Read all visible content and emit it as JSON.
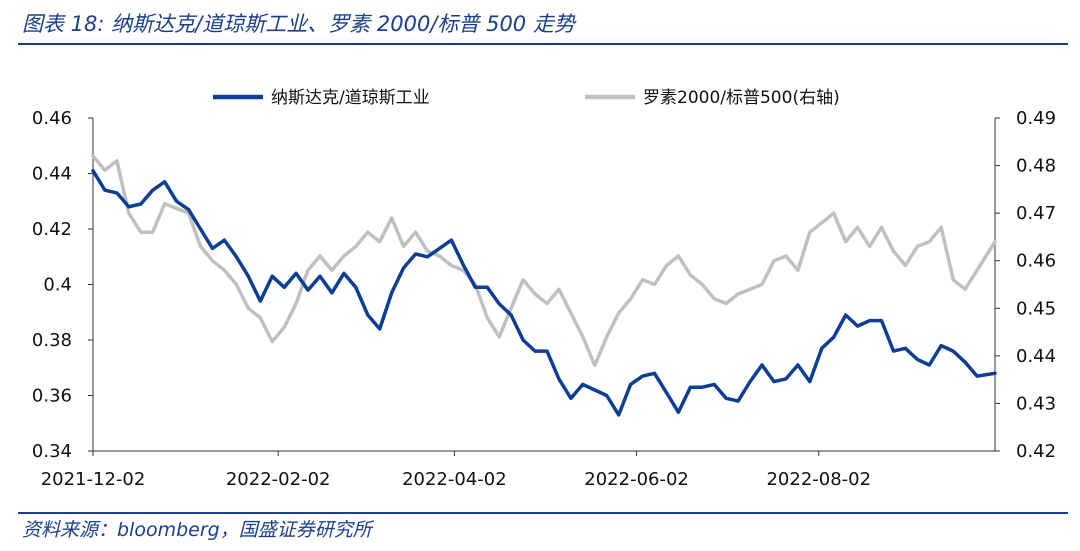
{
  "figure": {
    "title": "图表 18: 纳斯达克/道琼斯工业、罗素 2000/标普 500 走势",
    "source": "资料来源：bloomberg，国盛证券研究所"
  },
  "chart_data": {
    "type": "line",
    "title": "",
    "xlabel": "",
    "ylabel": "",
    "x_ticks": [
      "2021-12-02",
      "2022-02-02",
      "2022-04-02",
      "2022-06-02",
      "2022-08-02"
    ],
    "xlim": [
      "2021-12-02",
      "2022-09-30"
    ],
    "y_left": {
      "lim": [
        0.34,
        0.46
      ],
      "ticks": [
        "0.34",
        "0.36",
        "0.38",
        "0.4",
        "0.42",
        "0.44",
        "0.46"
      ]
    },
    "y_right": {
      "lim": [
        0.42,
        0.49
      ],
      "ticks": [
        "0.42",
        "0.43",
        "0.44",
        "0.45",
        "0.46",
        "0.47",
        "0.48",
        "0.49"
      ]
    },
    "legend_position": "top",
    "grid": false,
    "series": [
      {
        "name": "纳斯达克/道琼斯工业",
        "axis": "left",
        "color": "#0c3f94",
        "x": [
          "2021-12-02",
          "2021-12-06",
          "2021-12-10",
          "2021-12-14",
          "2021-12-18",
          "2021-12-22",
          "2021-12-26",
          "2021-12-30",
          "2022-01-03",
          "2022-01-07",
          "2022-01-11",
          "2022-01-15",
          "2022-01-19",
          "2022-01-23",
          "2022-01-27",
          "2022-01-31",
          "2022-02-04",
          "2022-02-08",
          "2022-02-12",
          "2022-02-16",
          "2022-02-20",
          "2022-02-24",
          "2022-02-28",
          "2022-03-04",
          "2022-03-08",
          "2022-03-12",
          "2022-03-16",
          "2022-03-20",
          "2022-03-24",
          "2022-03-28",
          "2022-04-01",
          "2022-04-05",
          "2022-04-09",
          "2022-04-13",
          "2022-04-17",
          "2022-04-21",
          "2022-04-25",
          "2022-04-29",
          "2022-05-03",
          "2022-05-07",
          "2022-05-11",
          "2022-05-15",
          "2022-05-19",
          "2022-05-23",
          "2022-05-27",
          "2022-05-31",
          "2022-06-04",
          "2022-06-08",
          "2022-06-12",
          "2022-06-16",
          "2022-06-20",
          "2022-06-24",
          "2022-06-28",
          "2022-07-02",
          "2022-07-06",
          "2022-07-10",
          "2022-07-14",
          "2022-07-18",
          "2022-07-22",
          "2022-07-26",
          "2022-07-30",
          "2022-08-03",
          "2022-08-07",
          "2022-08-11",
          "2022-08-15",
          "2022-08-19",
          "2022-08-23",
          "2022-08-27",
          "2022-08-31",
          "2022-09-04",
          "2022-09-08",
          "2022-09-12",
          "2022-09-16",
          "2022-09-20",
          "2022-09-24",
          "2022-09-30"
        ],
        "values": [
          0.441,
          0.434,
          0.433,
          0.428,
          0.429,
          0.434,
          0.437,
          0.43,
          0.427,
          0.42,
          0.413,
          0.416,
          0.41,
          0.403,
          0.394,
          0.403,
          0.399,
          0.404,
          0.398,
          0.403,
          0.397,
          0.404,
          0.399,
          0.389,
          0.384,
          0.397,
          0.406,
          0.411,
          0.41,
          0.413,
          0.416,
          0.407,
          0.399,
          0.399,
          0.393,
          0.389,
          0.38,
          0.376,
          0.376,
          0.366,
          0.359,
          0.364,
          0.362,
          0.36,
          0.353,
          0.364,
          0.367,
          0.368,
          0.361,
          0.354,
          0.363,
          0.363,
          0.364,
          0.359,
          0.358,
          0.365,
          0.371,
          0.365,
          0.366,
          0.371,
          0.365,
          0.377,
          0.381,
          0.389,
          0.385,
          0.387,
          0.387,
          0.376,
          0.377,
          0.373,
          0.371,
          0.378,
          0.376,
          0.372,
          0.367,
          0.368
        ]
      },
      {
        "name": "罗素2000/标普500(右轴)",
        "axis": "right",
        "color": "#c0c0c0",
        "x": [
          "2021-12-02",
          "2021-12-06",
          "2021-12-10",
          "2021-12-14",
          "2021-12-18",
          "2021-12-22",
          "2021-12-26",
          "2021-12-30",
          "2022-01-03",
          "2022-01-07",
          "2022-01-11",
          "2022-01-15",
          "2022-01-19",
          "2022-01-23",
          "2022-01-27",
          "2022-01-31",
          "2022-02-04",
          "2022-02-08",
          "2022-02-12",
          "2022-02-16",
          "2022-02-20",
          "2022-02-24",
          "2022-02-28",
          "2022-03-04",
          "2022-03-08",
          "2022-03-12",
          "2022-03-16",
          "2022-03-20",
          "2022-03-24",
          "2022-03-28",
          "2022-04-01",
          "2022-04-05",
          "2022-04-09",
          "2022-04-13",
          "2022-04-17",
          "2022-04-21",
          "2022-04-25",
          "2022-04-29",
          "2022-05-03",
          "2022-05-07",
          "2022-05-11",
          "2022-05-15",
          "2022-05-19",
          "2022-05-23",
          "2022-05-27",
          "2022-05-31",
          "2022-06-04",
          "2022-06-08",
          "2022-06-12",
          "2022-06-16",
          "2022-06-20",
          "2022-06-24",
          "2022-06-28",
          "2022-07-02",
          "2022-07-06",
          "2022-07-10",
          "2022-07-14",
          "2022-07-18",
          "2022-07-22",
          "2022-07-26",
          "2022-07-30",
          "2022-08-03",
          "2022-08-07",
          "2022-08-11",
          "2022-08-15",
          "2022-08-19",
          "2022-08-23",
          "2022-08-27",
          "2022-08-31",
          "2022-09-04",
          "2022-09-08",
          "2022-09-12",
          "2022-09-16",
          "2022-09-20",
          "2022-09-24",
          "2022-09-30"
        ],
        "values": [
          0.482,
          0.479,
          0.481,
          0.47,
          0.466,
          0.466,
          0.472,
          0.471,
          0.47,
          0.463,
          0.46,
          0.458,
          0.455,
          0.45,
          0.448,
          0.443,
          0.446,
          0.451,
          0.458,
          0.461,
          0.458,
          0.461,
          0.463,
          0.466,
          0.464,
          0.469,
          0.463,
          0.466,
          0.462,
          0.461,
          0.459,
          0.458,
          0.455,
          0.448,
          0.444,
          0.45,
          0.456,
          0.453,
          0.451,
          0.454,
          0.449,
          0.444,
          0.438,
          0.444,
          0.449,
          0.452,
          0.456,
          0.455,
          0.459,
          0.461,
          0.457,
          0.455,
          0.452,
          0.451,
          0.453,
          0.454,
          0.455,
          0.46,
          0.461,
          0.458,
          0.466,
          0.468,
          0.47,
          0.464,
          0.467,
          0.463,
          0.467,
          0.462,
          0.459,
          0.463,
          0.464,
          0.467,
          0.456,
          0.454,
          0.458,
          0.464
        ]
      }
    ]
  }
}
